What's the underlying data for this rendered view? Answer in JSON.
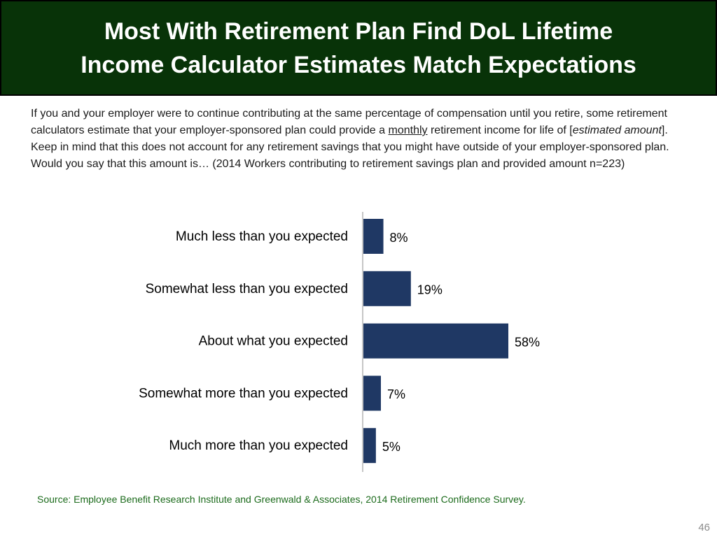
{
  "slide": {
    "title_line1": "Most With Retirement Plan Find DoL Lifetime",
    "title_line2": "Income Calculator Estimates Match Expectations",
    "question": {
      "part1": "If you and your employer were to continue contributing at the same percentage of compensation until you retire, some retirement calculators estimate that your employer-sponsored plan could provide a ",
      "underlined": "monthly",
      "part2": " retirement income for life of [",
      "italic": "estimated amount",
      "part3": "]. Keep in mind that this does not account for any retirement savings that you might have outside of your employer-sponsored plan. Would you say that this amount is… (2014 Workers contributing to retirement savings plan and provided amount n=223)"
    },
    "source": "Source:  Employee Benefit Research Institute and Greenwald & Associates, 2014 Retirement Confidence Survey.",
    "page_number": "46"
  },
  "colors": {
    "title_band": "#083308",
    "bar": "#1f3864",
    "source_text": "#1c6b1c"
  },
  "chart_data": {
    "type": "bar",
    "orientation": "horizontal",
    "title": "",
    "categories": [
      "Much less than you expected",
      "Somewhat less than you expected",
      "About what you expected",
      "Somewhat more than you expected",
      "Much more than you expected"
    ],
    "values": [
      8,
      19,
      58,
      7,
      5
    ],
    "value_labels": [
      "8%",
      "19%",
      "58%",
      "7%",
      "5%"
    ],
    "unit": "%",
    "xlim": [
      0,
      100
    ],
    "grid": false,
    "legend": "none"
  }
}
